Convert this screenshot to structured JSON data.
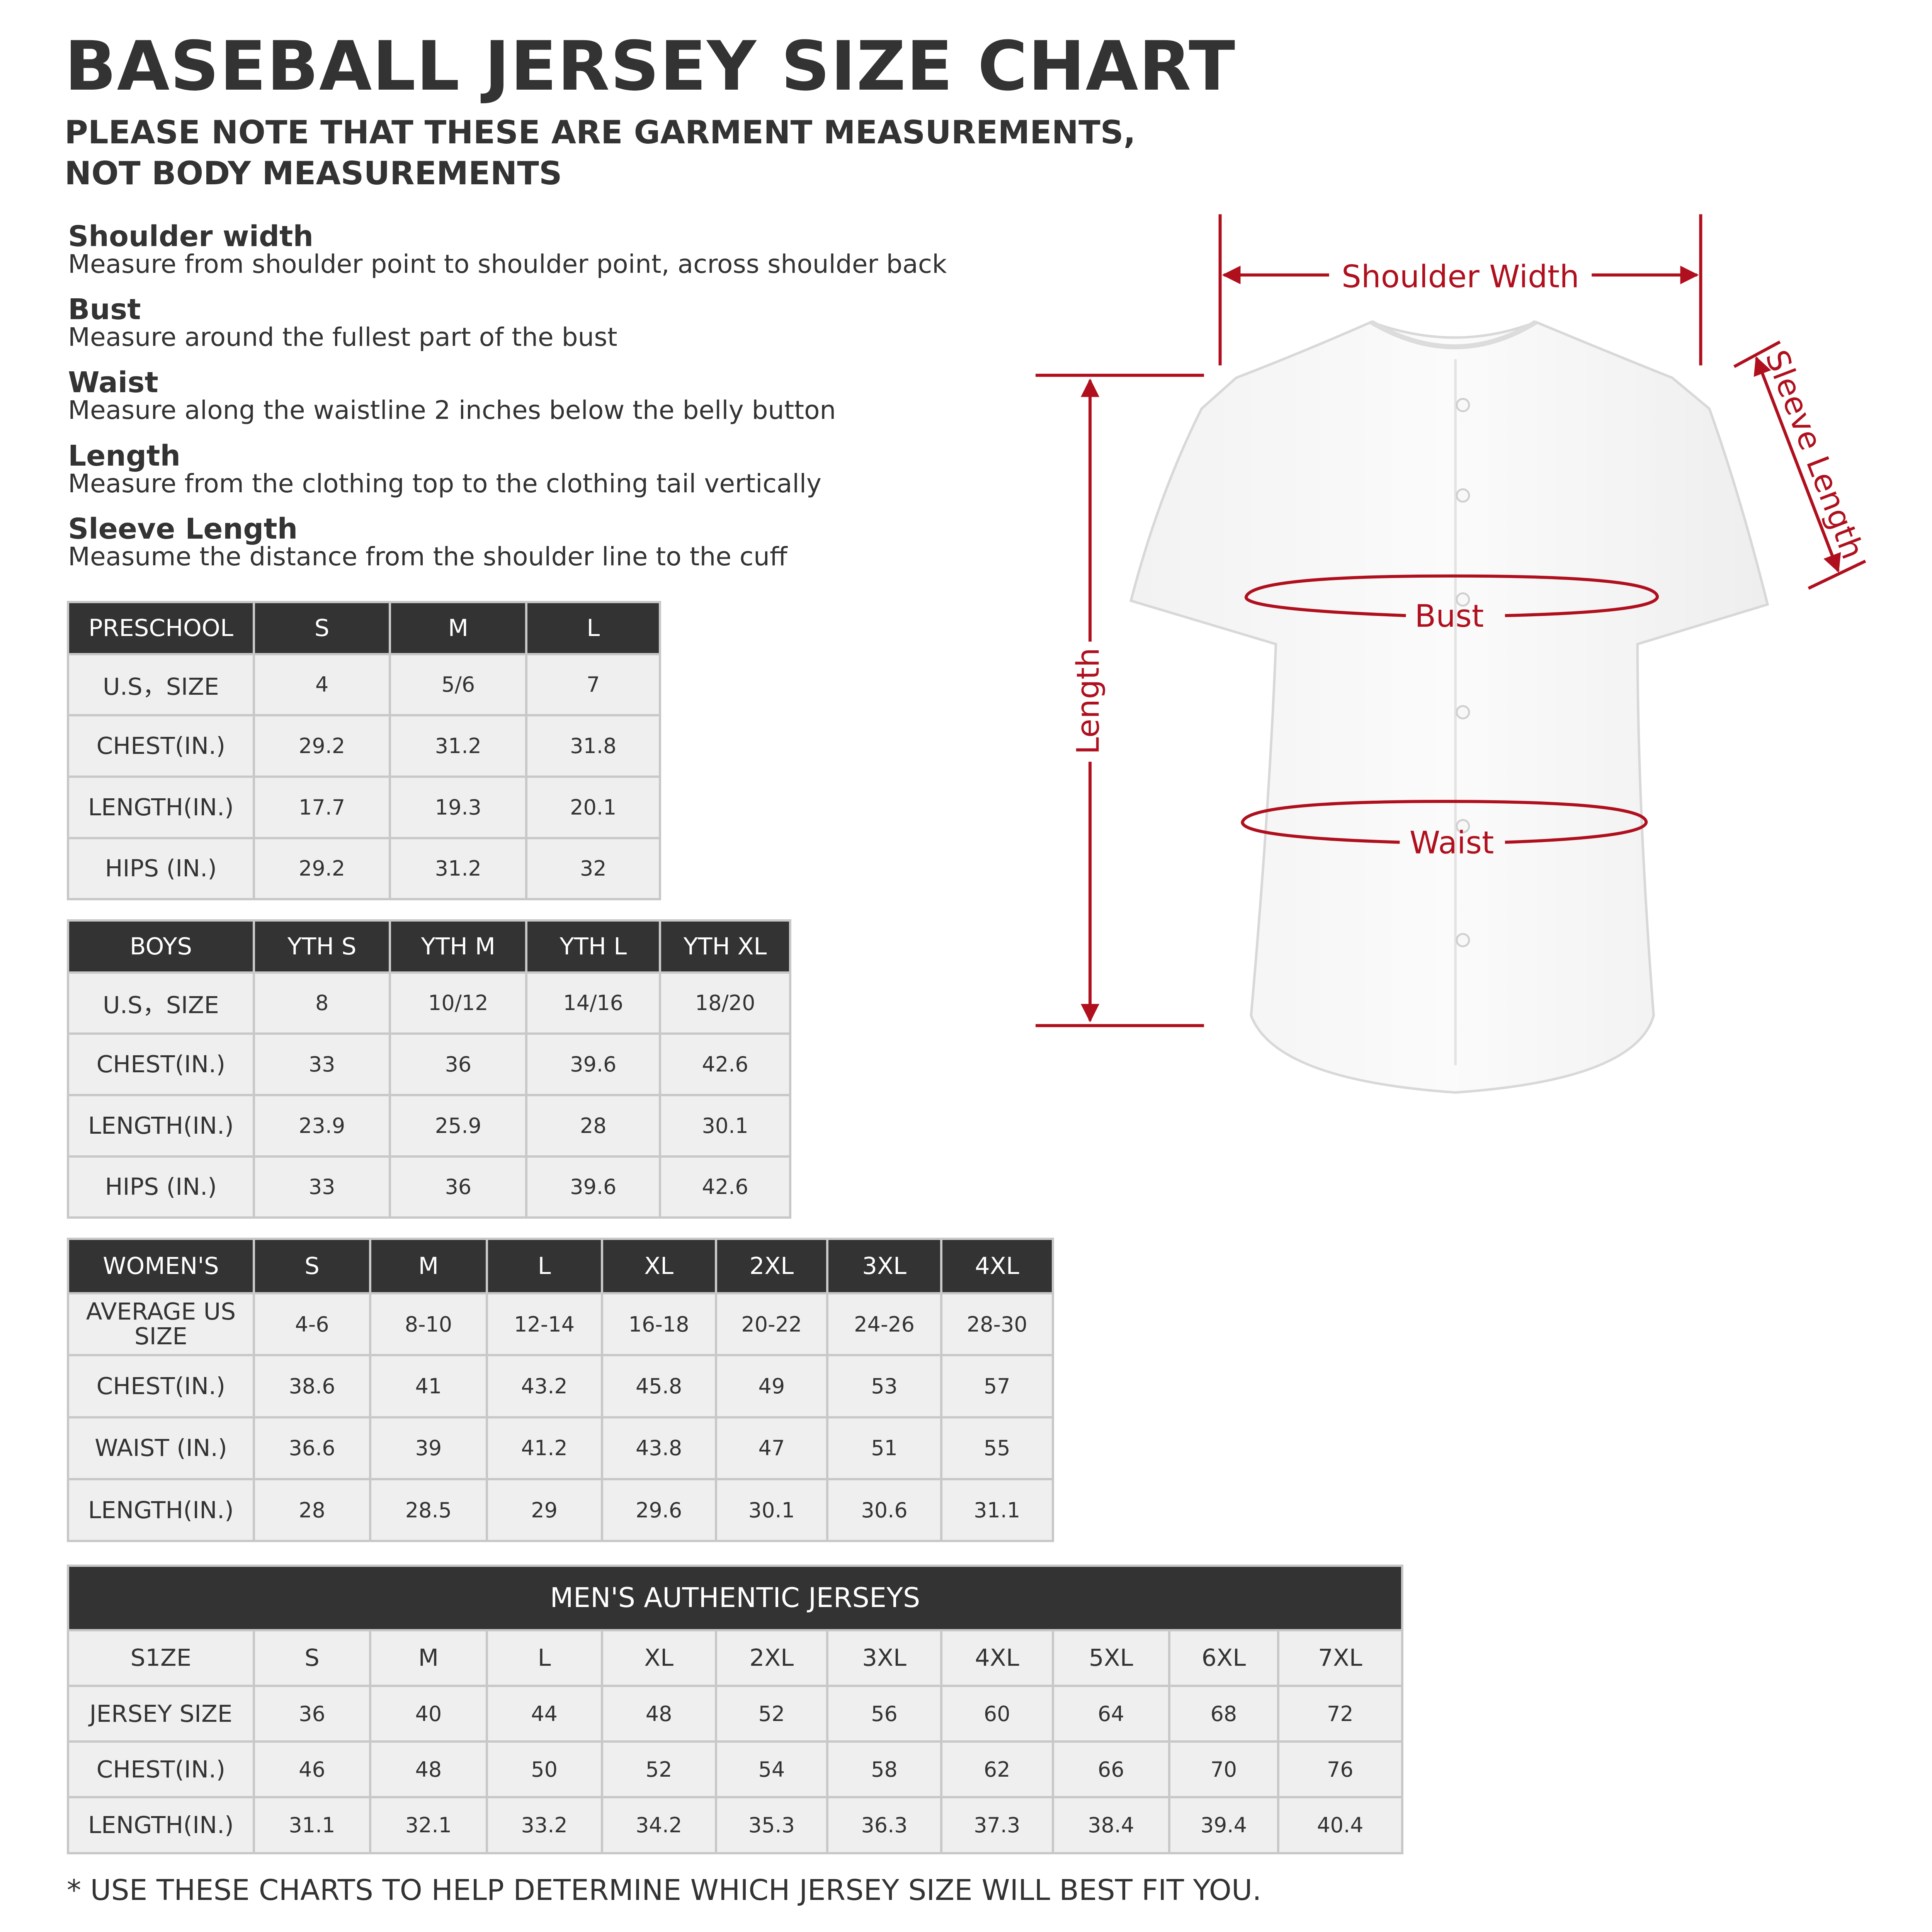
{
  "title": "BASEBALL JERSEY SIZE CHART",
  "subtitle_lines": [
    "PLEASE NOTE THAT THESE ARE GARMENT MEASUREMENTS,",
    "NOT BODY MEASUREMENTS"
  ],
  "definitions": [
    {
      "label": "Shoulder width",
      "desc": "Measure from shoulder point to shoulder point, across shoulder back"
    },
    {
      "label": "Bust",
      "desc": "Measure around the fullest part of the bust"
    },
    {
      "label": "Waist",
      "desc": "Measure along the waistline 2 inches below the belly button"
    },
    {
      "label": "Length",
      "desc": "Measure from the clothing top to the clothing tail vertically"
    },
    {
      "label": "Sleeve Length",
      "desc": "Measume the distance from the shoulder line to the cuff"
    }
  ],
  "diagram": {
    "accent_color": "#b0101e",
    "shoulder_width": "Shoulder Width",
    "sleeve_length": "Sleeve Length",
    "length": "Length",
    "bust": "Bust",
    "waist": "Waist"
  },
  "tables": {
    "preschool": {
      "header": [
        "PRESCHOOL",
        "S",
        "M",
        "L"
      ],
      "rows": [
        [
          "U.S，SIZE",
          "4",
          "5/6",
          "7"
        ],
        [
          "CHEST(IN.)",
          "29.2",
          "31.2",
          "31.8"
        ],
        [
          "LENGTH(IN.)",
          "17.7",
          "19.3",
          "20.1"
        ],
        [
          "HIPS (IN.)",
          "29.2",
          "31.2",
          "32"
        ]
      ]
    },
    "boys": {
      "header": [
        "BOYS",
        "YTH S",
        "YTH M",
        "YTH L",
        "YTH XL"
      ],
      "rows": [
        [
          "U.S，SIZE",
          "8",
          "10/12",
          "14/16",
          "18/20"
        ],
        [
          "CHEST(IN.)",
          "33",
          "36",
          "39.6",
          "42.6"
        ],
        [
          "LENGTH(IN.)",
          "23.9",
          "25.9",
          "28",
          "30.1"
        ],
        [
          "HIPS (IN.)",
          "33",
          "36",
          "39.6",
          "42.6"
        ]
      ]
    },
    "womens": {
      "header": [
        "WOMEN'S",
        "S",
        "M",
        "L",
        "XL",
        "2XL",
        "3XL",
        "4XL"
      ],
      "rows": [
        [
          "AVERAGE US SIZE",
          "4-6",
          "8-10",
          "12-14",
          "16-18",
          "20-22",
          "24-26",
          "28-30"
        ],
        [
          "CHEST(IN.)",
          "38.6",
          "41",
          "43.2",
          "45.8",
          "49",
          "53",
          "57"
        ],
        [
          "WAIST (IN.)",
          "36.6",
          "39",
          "41.2",
          "43.8",
          "47",
          "51",
          "55"
        ],
        [
          "LENGTH(IN.)",
          "28",
          "28.5",
          "29",
          "29.6",
          "30.1",
          "30.6",
          "31.1"
        ]
      ]
    },
    "mens": {
      "title": "MEN'S AUTHENTIC JERSEYS",
      "rows": [
        [
          "S1ZE",
          "S",
          "M",
          "L",
          "XL",
          "2XL",
          "3XL",
          "4XL",
          "5XL",
          "6XL",
          "7XL"
        ],
        [
          "JERSEY SIZE",
          "36",
          "40",
          "44",
          "48",
          "52",
          "56",
          "60",
          "64",
          "68",
          "72"
        ],
        [
          "CHEST(IN.)",
          "46",
          "48",
          "50",
          "52",
          "54",
          "58",
          "62",
          "66",
          "70",
          "76"
        ],
        [
          "LENGTH(IN.)",
          "31.1",
          "32.1",
          "33.2",
          "34.2",
          "35.3",
          "36.3",
          "37.3",
          "38.4",
          "39.4",
          "40.4"
        ]
      ]
    }
  },
  "footer": "* USE THESE CHARTS TO HELP DETERMINE WHICH JERSEY SIZE WILL BEST FIT YOU."
}
